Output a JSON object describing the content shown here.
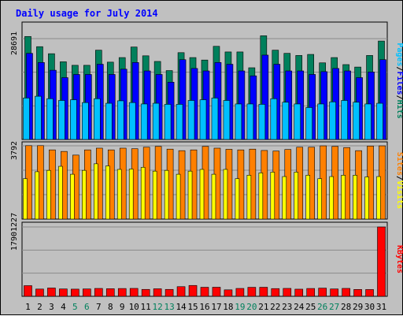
{
  "chart_data": {
    "type": "bar",
    "title": "Daily usage for July 2014",
    "colors": {
      "background": "#c0c0c0",
      "plot": "#c0c0c0",
      "title": "#0000ff",
      "hits": "#00805c",
      "files": "#0000ff",
      "pages": "#00c0ff",
      "sites": "#ff8000",
      "visits": "#ffff00",
      "kbytes": "#ff0000",
      "weekend_label": "#00805c",
      "weekday_label": "#000000"
    },
    "categories": [
      "1",
      "2",
      "3",
      "4",
      "5",
      "6",
      "7",
      "8",
      "9",
      "10",
      "11",
      "12",
      "13",
      "14",
      "15",
      "16",
      "17",
      "18",
      "19",
      "20",
      "21",
      "22",
      "23",
      "24",
      "25",
      "26",
      "27",
      "28",
      "29",
      "30",
      "31"
    ],
    "weekend_days": [
      "5",
      "6",
      "12",
      "13",
      "19",
      "20",
      "26",
      "27"
    ],
    "panels": [
      {
        "id": "hits-files-pages",
        "ymax_label": "28691",
        "ymax": 28691,
        "legend": [
          {
            "text": "Pages",
            "color": "#00c0ff"
          },
          {
            "text": "/",
            "color": "#000000"
          },
          {
            "text": "Files",
            "color": "#0000ff"
          },
          {
            "text": "/",
            "color": "#000000"
          },
          {
            "text": "Hits",
            "color": "#00805c"
          }
        ],
        "series": [
          {
            "name": "Hits",
            "color": "#00805c",
            "values": [
              29300,
              26400,
              24400,
              22100,
              21100,
              21100,
              25400,
              22000,
              23300,
              26300,
              23800,
              22200,
              19600,
              24700,
              23300,
              22600,
              26500,
              24900,
              24900,
              20400,
              29500,
              25400,
              24500,
              23900,
              24200,
              21800,
              23300,
              21300,
              20600,
              23900,
              28000
            ]
          },
          {
            "name": "Files",
            "color": "#0000ff",
            "values": [
              24500,
              21900,
              19700,
              17600,
              18500,
              18500,
              21400,
              18500,
              20000,
              21900,
              19500,
              18500,
              16300,
              22700,
              20200,
              19500,
              21900,
              21400,
              19500,
              18100,
              24000,
              21400,
              19500,
              19500,
              18500,
              19300,
              20200,
              19500,
              17600,
              19200,
              22700
            ]
          },
          {
            "name": "Pages",
            "color": "#00c0ff",
            "values": [
              11800,
              12300,
              11600,
              11100,
              11300,
              10500,
              11600,
              10300,
              11000,
              10500,
              10100,
              10300,
              10000,
              10000,
              11100,
              11300,
              11800,
              11100,
              10100,
              10100,
              10000,
              11600,
              10600,
              10100,
              9100,
              10100,
              10700,
              11100,
              10600,
              10100,
              10300
            ]
          }
        ]
      },
      {
        "id": "sites-visits",
        "ymax_label": "3792",
        "ymax": 3792,
        "legend": [
          {
            "text": "Sites",
            "color": "#ff8000"
          },
          {
            "text": "/",
            "color": "#000000"
          },
          {
            "text": "Visits",
            "color": "#ffff00"
          }
        ],
        "series": [
          {
            "name": "Sites",
            "color": "#ff8000",
            "values": [
              3800,
              3800,
              3580,
              3500,
              3310,
              3580,
              3670,
              3580,
              3670,
              3640,
              3720,
              3760,
              3620,
              3540,
              3580,
              3760,
              3670,
              3610,
              3580,
              3620,
              3550,
              3520,
              3600,
              3720,
              3720,
              3790,
              3760,
              3700,
              3540,
              3780,
              3790
            ]
          },
          {
            "name": "Visits",
            "color": "#ffff00",
            "values": [
              2090,
              2450,
              2520,
              2730,
              2320,
              2520,
              2860,
              2750,
              2570,
              2590,
              2680,
              2480,
              2520,
              2320,
              2480,
              2570,
              2320,
              2570,
              2090,
              2270,
              2390,
              2430,
              2200,
              2430,
              2270,
              2090,
              2200,
              2270,
              2270,
              2180,
              2200
            ]
          }
        ]
      },
      {
        "id": "kbytes",
        "ymax_label": "17901227",
        "ymax": 17901227,
        "legend": [
          {
            "text": "KBytes",
            "color": "#ff0000"
          }
        ],
        "series": [
          {
            "name": "KBytes",
            "color": "#ff0000",
            "values": [
              2750000,
              1870000,
              2140000,
              1900000,
              1850000,
              1900000,
              2030000,
              1960000,
              2010000,
              2040000,
              1780000,
              1940000,
              1780000,
              2490000,
              2800000,
              2330000,
              2340000,
              1670000,
              2030000,
              2320000,
              2330000,
              1990000,
              2040000,
              1840000,
              2020000,
              2110000,
              1900000,
              2040000,
              1770000,
              1750000,
              17901227
            ]
          }
        ]
      }
    ]
  }
}
